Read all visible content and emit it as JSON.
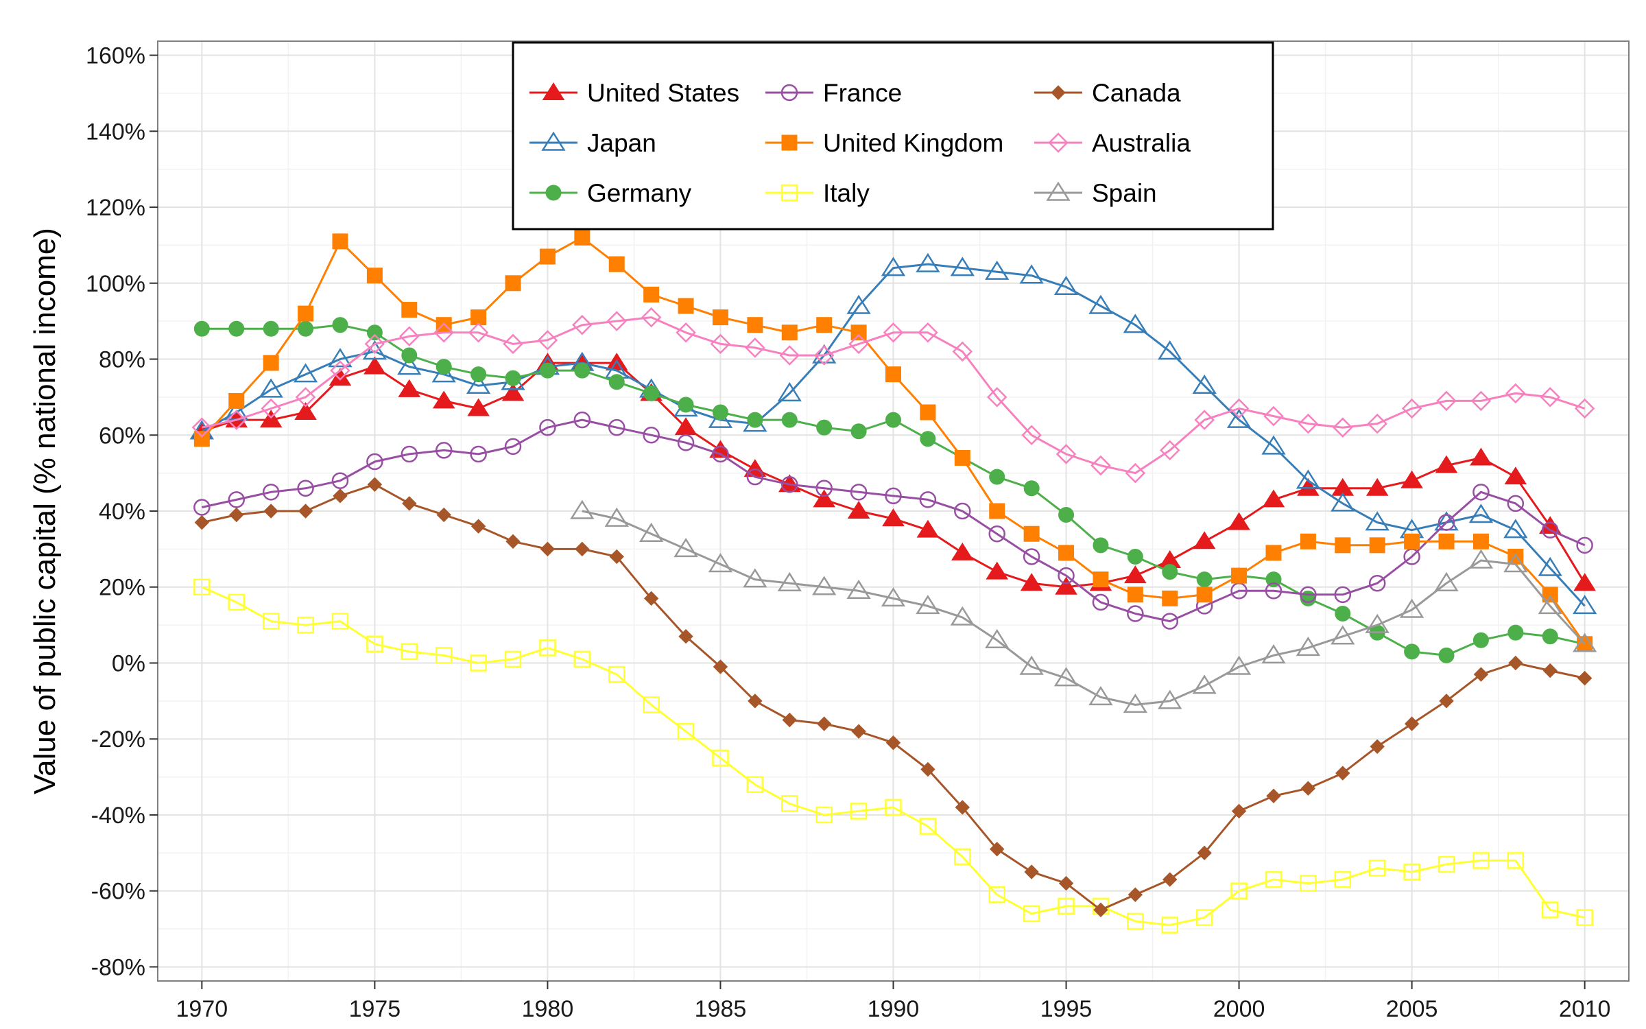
{
  "chart_data": {
    "type": "line",
    "title": "",
    "xlabel": "",
    "ylabel": "Value of public capital (% national income)",
    "xlim": [
      1970,
      2010
    ],
    "ylim": [
      -80,
      160
    ],
    "x_ticks": [
      1970,
      1975,
      1980,
      1985,
      1990,
      1995,
      2000,
      2005,
      2010
    ],
    "y_ticks": [
      -80,
      -60,
      -40,
      -20,
      0,
      20,
      40,
      60,
      80,
      100,
      120,
      140,
      160
    ],
    "y_tick_labels": [
      "-80%",
      "-60%",
      "-40%",
      "-20%",
      "0%",
      "20%",
      "40%",
      "60%",
      "80%",
      "100%",
      "120%",
      "140%",
      "160%"
    ],
    "grid": true,
    "legend_position": "top-center",
    "x": [
      1970,
      1971,
      1972,
      1973,
      1974,
      1975,
      1976,
      1977,
      1978,
      1979,
      1980,
      1981,
      1982,
      1983,
      1984,
      1985,
      1986,
      1987,
      1988,
      1989,
      1990,
      1991,
      1992,
      1993,
      1994,
      1995,
      1996,
      1997,
      1998,
      1999,
      2000,
      2001,
      2002,
      2003,
      2004,
      2005,
      2006,
      2007,
      2008,
      2009,
      2010
    ],
    "series": [
      {
        "name": "United States",
        "color": "#e41a1c",
        "marker": "triangle-filled",
        "values": [
          61,
          64,
          64,
          66,
          75,
          78,
          72,
          69,
          67,
          71,
          79,
          79,
          79,
          71,
          62,
          56,
          51,
          47,
          43,
          40,
          38,
          35,
          29,
          24,
          21,
          20,
          21,
          23,
          27,
          32,
          37,
          43,
          46,
          46,
          46,
          48,
          52,
          54,
          49,
          36,
          21
        ]
      },
      {
        "name": "Japan",
        "color": "#377eb8",
        "marker": "triangle-open",
        "values": [
          61,
          66,
          72,
          76,
          80,
          82,
          78,
          76,
          73,
          74,
          78,
          79,
          77,
          72,
          67,
          64,
          63,
          71,
          81,
          94,
          104,
          105,
          104,
          103,
          102,
          99,
          94,
          89,
          82,
          73,
          64,
          57,
          48,
          42,
          37,
          35,
          37,
          39,
          35,
          25,
          15
        ]
      },
      {
        "name": "Germany",
        "color": "#4daf4a",
        "marker": "circle-filled",
        "values": [
          88,
          88,
          88,
          88,
          89,
          87,
          81,
          78,
          76,
          75,
          77,
          77,
          74,
          71,
          68,
          66,
          64,
          64,
          62,
          61,
          64,
          59,
          54,
          49,
          46,
          39,
          31,
          28,
          24,
          22,
          23,
          22,
          17,
          13,
          8,
          3,
          2,
          6,
          8,
          7,
          5
        ]
      },
      {
        "name": "France",
        "color": "#984ea3",
        "marker": "circle-open",
        "values": [
          41,
          43,
          45,
          46,
          48,
          53,
          55,
          56,
          55,
          57,
          62,
          64,
          62,
          60,
          58,
          55,
          49,
          47,
          46,
          45,
          44,
          43,
          40,
          34,
          28,
          23,
          16,
          13,
          11,
          15,
          19,
          19,
          18,
          18,
          21,
          28,
          37,
          45,
          42,
          35,
          31
        ]
      },
      {
        "name": "United Kingdom",
        "color": "#ff7f00",
        "marker": "square-filled",
        "values": [
          59,
          69,
          79,
          92,
          111,
          102,
          93,
          89,
          91,
          100,
          107,
          112,
          105,
          97,
          94,
          91,
          89,
          87,
          89,
          87,
          76,
          66,
          54,
          40,
          34,
          29,
          22,
          18,
          17,
          18,
          23,
          29,
          32,
          31,
          31,
          32,
          32,
          32,
          28,
          18,
          5
        ]
      },
      {
        "name": "Italy",
        "color": "#ffff33",
        "marker": "square-open",
        "values": [
          20,
          16,
          11,
          10,
          11,
          5,
          3,
          2,
          0,
          1,
          4,
          1,
          -3,
          -11,
          -18,
          -25,
          -32,
          -37,
          -40,
          -39,
          -38,
          -43,
          -51,
          -61,
          -66,
          -64,
          -64,
          -68,
          -69,
          -67,
          -60,
          -57,
          -58,
          -57,
          -54,
          -55,
          -53,
          -52,
          -52,
          -65,
          -67
        ]
      },
      {
        "name": "Canada",
        "color": "#a65628",
        "marker": "diamond-filled",
        "values": [
          37,
          39,
          40,
          40,
          44,
          47,
          42,
          39,
          36,
          32,
          30,
          30,
          28,
          17,
          7,
          -1,
          -10,
          -15,
          -16,
          -18,
          -21,
          -28,
          -38,
          -49,
          -55,
          -58,
          -65,
          -61,
          -57,
          -50,
          -39,
          -35,
          -33,
          -29,
          -22,
          -16,
          -10,
          -3,
          0,
          -2,
          -4
        ]
      },
      {
        "name": "Australia",
        "color": "#f781bf",
        "marker": "diamond-open",
        "values": [
          62,
          64,
          67,
          70,
          77,
          84,
          86,
          87,
          87,
          84,
          85,
          89,
          90,
          91,
          87,
          84,
          83,
          81,
          81,
          84,
          87,
          87,
          82,
          70,
          60,
          55,
          52,
          50,
          56,
          64,
          67,
          65,
          63,
          62,
          63,
          67,
          69,
          69,
          71,
          70,
          67
        ]
      },
      {
        "name": "Spain",
        "color": "#999999",
        "marker": "triangle-open",
        "values": [
          null,
          null,
          null,
          null,
          null,
          null,
          null,
          null,
          null,
          null,
          null,
          40,
          38,
          34,
          30,
          26,
          22,
          21,
          20,
          19,
          17,
          15,
          12,
          6,
          -1,
          -4,
          -9,
          -11,
          -10,
          -6,
          -1,
          2,
          4,
          7,
          10,
          14,
          21,
          27,
          26,
          15,
          5
        ]
      }
    ]
  }
}
